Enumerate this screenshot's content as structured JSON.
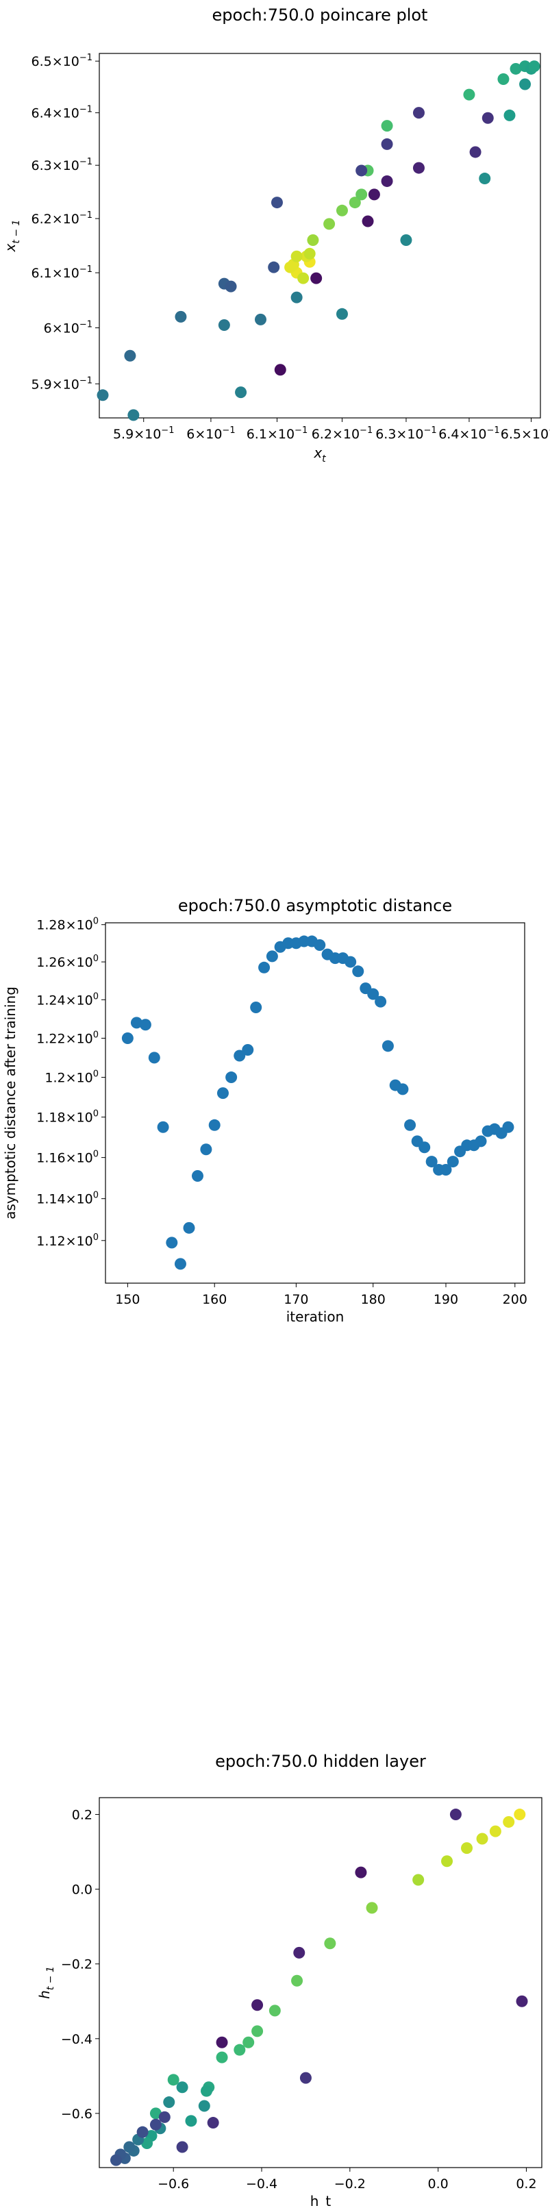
{
  "chart_data": [
    {
      "type": "scatter",
      "title": "epoch:750.0 poincare plot",
      "xlabel_base": "x",
      "xlabel_sub": "t",
      "ylabel_base": "x",
      "ylabel_sub": "t − 1",
      "scale": "log",
      "xlim": [
        0.5835,
        0.6515
      ],
      "ylim": [
        0.584,
        0.6515
      ],
      "xticks": [
        {
          "v": 0.59,
          "m": "5.9",
          "e": "−1"
        },
        {
          "v": 0.6,
          "m": "6",
          "e": "−1"
        },
        {
          "v": 0.61,
          "m": "6.1",
          "e": "−1"
        },
        {
          "v": 0.62,
          "m": "6.2",
          "e": "−1"
        },
        {
          "v": 0.63,
          "m": "6.3",
          "e": "−1"
        },
        {
          "v": 0.64,
          "m": "6.4",
          "e": "−1"
        },
        {
          "v": 0.65,
          "m": "6.5",
          "e": "−1"
        }
      ],
      "yticks": [
        {
          "v": 0.59,
          "m": "5.9",
          "e": "−1"
        },
        {
          "v": 0.6,
          "m": "6",
          "e": "−1"
        },
        {
          "v": 0.61,
          "m": "6.1",
          "e": "−1"
        },
        {
          "v": 0.62,
          "m": "6.2",
          "e": "−1"
        },
        {
          "v": 0.63,
          "m": "6.3",
          "e": "−1"
        },
        {
          "v": 0.64,
          "m": "6.4",
          "e": "−1"
        },
        {
          "v": 0.65,
          "m": "6.5",
          "e": "−1"
        }
      ],
      "colormap": "viridis",
      "points": [
        {
          "x": 0.615,
          "y": 0.612,
          "c": 0.98
        },
        {
          "x": 0.613,
          "y": 0.61,
          "c": 0.97
        },
        {
          "x": 0.612,
          "y": 0.611,
          "c": 0.96
        },
        {
          "x": 0.6125,
          "y": 0.6115,
          "c": 0.96
        },
        {
          "x": 0.6145,
          "y": 0.613,
          "c": 0.95
        },
        {
          "x": 0.613,
          "y": 0.613,
          "c": 0.93
        },
        {
          "x": 0.614,
          "y": 0.609,
          "c": 0.92
        },
        {
          "x": 0.615,
          "y": 0.6135,
          "c": 0.91
        },
        {
          "x": 0.6155,
          "y": 0.616,
          "c": 0.85
        },
        {
          "x": 0.618,
          "y": 0.619,
          "c": 0.82
        },
        {
          "x": 0.62,
          "y": 0.6215,
          "c": 0.8
        },
        {
          "x": 0.622,
          "y": 0.623,
          "c": 0.78
        },
        {
          "x": 0.623,
          "y": 0.6245,
          "c": 0.76
        },
        {
          "x": 0.624,
          "y": 0.629,
          "c": 0.73
        },
        {
          "x": 0.627,
          "y": 0.6375,
          "c": 0.7
        },
        {
          "x": 0.64,
          "y": 0.6435,
          "c": 0.66
        },
        {
          "x": 0.6455,
          "y": 0.6465,
          "c": 0.62
        },
        {
          "x": 0.6475,
          "y": 0.6485,
          "c": 0.6
        },
        {
          "x": 0.649,
          "y": 0.649,
          "c": 0.58
        },
        {
          "x": 0.65,
          "y": 0.6485,
          "c": 0.57
        },
        {
          "x": 0.6505,
          "y": 0.649,
          "c": 0.58
        },
        {
          "x": 0.649,
          "y": 0.6455,
          "c": 0.52
        },
        {
          "x": 0.6465,
          "y": 0.6395,
          "c": 0.55
        },
        {
          "x": 0.6425,
          "y": 0.6275,
          "c": 0.5
        },
        {
          "x": 0.63,
          "y": 0.616,
          "c": 0.47
        },
        {
          "x": 0.62,
          "y": 0.6025,
          "c": 0.45
        },
        {
          "x": 0.613,
          "y": 0.6055,
          "c": 0.42
        },
        {
          "x": 0.602,
          "y": 0.6005,
          "c": 0.4
        },
        {
          "x": 0.6075,
          "y": 0.6015,
          "c": 0.38
        },
        {
          "x": 0.5955,
          "y": 0.602,
          "c": 0.36
        },
        {
          "x": 0.588,
          "y": 0.595,
          "c": 0.34
        },
        {
          "x": 0.584,
          "y": 0.588,
          "c": 0.4
        },
        {
          "x": 0.5885,
          "y": 0.5845,
          "c": 0.42
        },
        {
          "x": 0.6045,
          "y": 0.5885,
          "c": 0.44
        },
        {
          "x": 0.602,
          "y": 0.608,
          "c": 0.3
        },
        {
          "x": 0.603,
          "y": 0.6075,
          "c": 0.28
        },
        {
          "x": 0.6095,
          "y": 0.611,
          "c": 0.26
        },
        {
          "x": 0.61,
          "y": 0.623,
          "c": 0.24
        },
        {
          "x": 0.623,
          "y": 0.629,
          "c": 0.2
        },
        {
          "x": 0.627,
          "y": 0.634,
          "c": 0.18
        },
        {
          "x": 0.632,
          "y": 0.64,
          "c": 0.16
        },
        {
          "x": 0.641,
          "y": 0.6325,
          "c": 0.14
        },
        {
          "x": 0.643,
          "y": 0.639,
          "c": 0.15
        },
        {
          "x": 0.632,
          "y": 0.6295,
          "c": 0.1
        },
        {
          "x": 0.627,
          "y": 0.627,
          "c": 0.08
        },
        {
          "x": 0.625,
          "y": 0.6245,
          "c": 0.06
        },
        {
          "x": 0.624,
          "y": 0.6195,
          "c": 0.05
        },
        {
          "x": 0.616,
          "y": 0.609,
          "c": 0.04
        },
        {
          "x": 0.6105,
          "y": 0.5925,
          "c": 0.03
        }
      ]
    },
    {
      "type": "scatter",
      "title": "epoch:750.0 asymptotic distance",
      "xlabel": "iteration",
      "ylabel": "asymptotic distance after training",
      "scale": "log",
      "xlim": [
        147.55,
        201.45
      ],
      "ylim": [
        1.1,
        1.281
      ],
      "color": "#1f77b4",
      "xticks": [
        {
          "v": 150,
          "t": "150"
        },
        {
          "v": 160,
          "t": "160"
        },
        {
          "v": 170,
          "t": "170"
        },
        {
          "v": 180,
          "t": "180"
        },
        {
          "v": 190,
          "t": "190"
        },
        {
          "v": 200,
          "t": "200"
        }
      ],
      "yticks": [
        {
          "v": 1.12,
          "m": "1.12",
          "e": "0"
        },
        {
          "v": 1.14,
          "m": "1.14",
          "e": "0"
        },
        {
          "v": 1.16,
          "m": "1.16",
          "e": "0"
        },
        {
          "v": 1.18,
          "m": "1.18",
          "e": "0"
        },
        {
          "v": 1.2,
          "m": "1.2",
          "e": "0"
        },
        {
          "v": 1.22,
          "m": "1.22",
          "e": "0"
        },
        {
          "v": 1.24,
          "m": "1.24",
          "e": "0"
        },
        {
          "v": 1.26,
          "m": "1.26",
          "e": "0"
        },
        {
          "v": 1.28,
          "m": "1.28",
          "e": "0"
        }
      ],
      "x": [
        150,
        151,
        152,
        153,
        154,
        155,
        156,
        157,
        158,
        159,
        160,
        161,
        162,
        163,
        164,
        165,
        166,
        167,
        168,
        169,
        170,
        171,
        172,
        173,
        174,
        175,
        176,
        177,
        178,
        179,
        180,
        181,
        182,
        183,
        184,
        185,
        186,
        187,
        188,
        189,
        190,
        191,
        192,
        193,
        194,
        195,
        196,
        197,
        198,
        199
      ],
      "y": [
        1.22,
        1.228,
        1.227,
        1.21,
        1.175,
        1.119,
        1.109,
        1.126,
        1.151,
        1.164,
        1.176,
        1.192,
        1.2,
        1.211,
        1.214,
        1.236,
        1.257,
        1.263,
        1.268,
        1.27,
        1.27,
        1.271,
        1.271,
        1.269,
        1.264,
        1.262,
        1.262,
        1.26,
        1.255,
        1.246,
        1.243,
        1.239,
        1.216,
        1.196,
        1.194,
        1.176,
        1.168,
        1.165,
        1.158,
        1.154,
        1.154,
        1.158,
        1.163,
        1.166,
        1.166,
        1.168,
        1.173,
        1.174,
        1.172,
        1.175
      ]
    },
    {
      "type": "scatter",
      "title": "epoch:750.0 hidden layer",
      "xlabel": "h_t",
      "ylabel_base": "h",
      "ylabel_sub": "t − 1",
      "scale": "linear",
      "xlim": [
        -0.768,
        0.235
      ],
      "ylim": [
        -0.745,
        0.245
      ],
      "colormap": "viridis",
      "xticks": [
        {
          "v": -0.6,
          "t": "−0.6"
        },
        {
          "v": -0.4,
          "t": "−0.4"
        },
        {
          "v": -0.2,
          "t": "−0.2"
        },
        {
          "v": 0.0,
          "t": "0.0"
        },
        {
          "v": 0.2,
          "t": "0.2"
        }
      ],
      "yticks": [
        {
          "v": -0.6,
          "t": "−0.6"
        },
        {
          "v": -0.4,
          "t": "−0.4"
        },
        {
          "v": -0.2,
          "t": "−0.2"
        },
        {
          "v": 0.0,
          "t": "0.0"
        },
        {
          "v": 0.2,
          "t": "0.2"
        }
      ],
      "points": [
        {
          "x": 0.185,
          "y": 0.2,
          "c": 0.98
        },
        {
          "x": 0.16,
          "y": 0.18,
          "c": 0.96
        },
        {
          "x": 0.13,
          "y": 0.155,
          "c": 0.95
        },
        {
          "x": 0.1,
          "y": 0.135,
          "c": 0.93
        },
        {
          "x": 0.065,
          "y": 0.11,
          "c": 0.92
        },
        {
          "x": 0.02,
          "y": 0.075,
          "c": 0.9
        },
        {
          "x": -0.045,
          "y": 0.025,
          "c": 0.87
        },
        {
          "x": -0.15,
          "y": -0.05,
          "c": 0.82
        },
        {
          "x": -0.245,
          "y": -0.145,
          "c": 0.78
        },
        {
          "x": -0.32,
          "y": -0.245,
          "c": 0.76
        },
        {
          "x": -0.37,
          "y": -0.325,
          "c": 0.74
        },
        {
          "x": -0.41,
          "y": -0.38,
          "c": 0.72
        },
        {
          "x": -0.43,
          "y": -0.41,
          "c": 0.7
        },
        {
          "x": -0.45,
          "y": -0.43,
          "c": 0.68
        },
        {
          "x": -0.49,
          "y": -0.45,
          "c": 0.66
        },
        {
          "x": -0.52,
          "y": -0.53,
          "c": 0.6
        },
        {
          "x": -0.525,
          "y": -0.54,
          "c": 0.58
        },
        {
          "x": -0.6,
          "y": -0.51,
          "c": 0.64
        },
        {
          "x": -0.64,
          "y": -0.6,
          "c": 0.62
        },
        {
          "x": -0.58,
          "y": -0.53,
          "c": 0.52
        },
        {
          "x": -0.53,
          "y": -0.58,
          "c": 0.5
        },
        {
          "x": -0.56,
          "y": -0.62,
          "c": 0.55
        },
        {
          "x": -0.61,
          "y": -0.57,
          "c": 0.48
        },
        {
          "x": -0.63,
          "y": -0.64,
          "c": 0.46
        },
        {
          "x": -0.65,
          "y": -0.66,
          "c": 0.56
        },
        {
          "x": -0.66,
          "y": -0.68,
          "c": 0.58
        },
        {
          "x": -0.68,
          "y": -0.67,
          "c": 0.4
        },
        {
          "x": -0.69,
          "y": -0.7,
          "c": 0.36
        },
        {
          "x": -0.7,
          "y": -0.69,
          "c": 0.34
        },
        {
          "x": -0.71,
          "y": -0.72,
          "c": 0.3
        },
        {
          "x": -0.72,
          "y": -0.71,
          "c": 0.28
        },
        {
          "x": -0.73,
          "y": -0.725,
          "c": 0.26
        },
        {
          "x": -0.67,
          "y": -0.65,
          "c": 0.24
        },
        {
          "x": -0.64,
          "y": -0.63,
          "c": 0.22
        },
        {
          "x": -0.62,
          "y": -0.61,
          "c": 0.2
        },
        {
          "x": -0.58,
          "y": -0.69,
          "c": 0.18
        },
        {
          "x": -0.51,
          "y": -0.625,
          "c": 0.14
        },
        {
          "x": -0.3,
          "y": -0.505,
          "c": 0.16
        },
        {
          "x": -0.49,
          "y": -0.41,
          "c": 0.06
        },
        {
          "x": -0.41,
          "y": -0.31,
          "c": 0.08
        },
        {
          "x": -0.315,
          "y": -0.17,
          "c": 0.1
        },
        {
          "x": -0.175,
          "y": 0.045,
          "c": 0.06
        },
        {
          "x": 0.04,
          "y": 0.2,
          "c": 0.12
        },
        {
          "x": 0.19,
          "y": -0.3,
          "c": 0.1
        }
      ]
    }
  ]
}
